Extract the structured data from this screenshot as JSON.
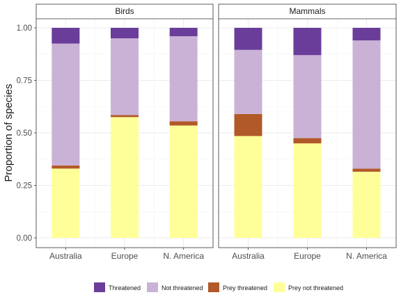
{
  "chart_data": {
    "type": "bar",
    "stacked": true,
    "ylabel": "Proportion of species",
    "xlabel": "",
    "ylim": [
      0,
      1
    ],
    "yticks": [
      "0.00",
      "0.25",
      "0.50",
      "0.75",
      "1.00"
    ],
    "grid": true,
    "legend_position": "bottom",
    "categories": [
      "Australia",
      "Europe",
      "N. America"
    ],
    "stack_order": [
      "Prey not threatened",
      "Prey threatened",
      "Not threatened",
      "Threatened"
    ],
    "legend": [
      {
        "name": "Threatened",
        "color": "#6A3D9A"
      },
      {
        "name": "Not threatened",
        "color": "#CAB2D6"
      },
      {
        "name": "Prey threatened",
        "color": "#B15928"
      },
      {
        "name": "Prey not threatened",
        "color": "#FFFF99"
      }
    ],
    "panels": [
      {
        "title": "Birds",
        "series": [
          {
            "name": "Prey not threatened",
            "values": [
              0.33,
              0.575,
              0.535
            ]
          },
          {
            "name": "Prey threatened",
            "values": [
              0.015,
              0.01,
              0.02
            ]
          },
          {
            "name": "Not threatened",
            "values": [
              0.58,
              0.365,
              0.405
            ]
          },
          {
            "name": "Threatened",
            "values": [
              0.075,
              0.05,
              0.04
            ]
          }
        ]
      },
      {
        "title": "Mammals",
        "series": [
          {
            "name": "Prey not threatened",
            "values": [
              0.485,
              0.45,
              0.315
            ]
          },
          {
            "name": "Prey threatened",
            "values": [
              0.105,
              0.025,
              0.015
            ]
          },
          {
            "name": "Not threatened",
            "values": [
              0.305,
              0.395,
              0.61
            ]
          },
          {
            "name": "Threatened",
            "values": [
              0.105,
              0.13,
              0.06
            ]
          }
        ]
      }
    ]
  }
}
